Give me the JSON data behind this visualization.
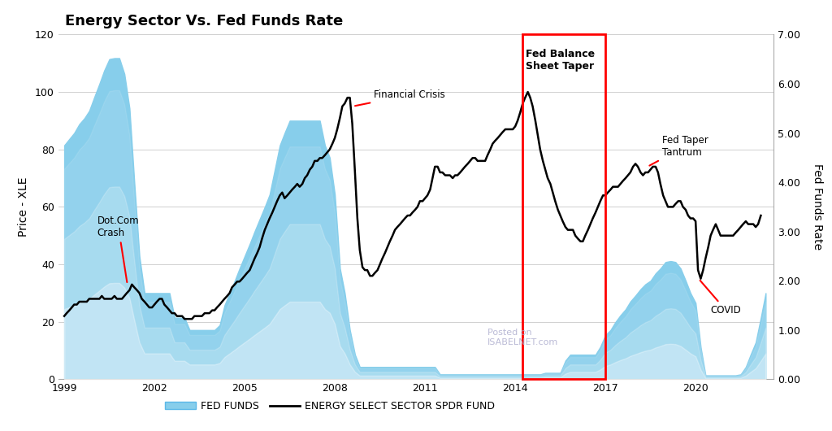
{
  "title": "Energy Sector Vs. Fed Funds Rate",
  "ylabel_left": "Price - XLE",
  "ylabel_right": "Fed Funds Rate",
  "ylim_left": [
    0,
    120
  ],
  "ylim_right": [
    0,
    7.0
  ],
  "background_color": "#ffffff",
  "grid_color": "#d0d0d0",
  "xle_color": "#000000",
  "fed_color_top": "#4db8e8",
  "fed_color_bottom": "#d0eef8",
  "annotation_color": "#ff0000",
  "rect_color": "#ff0000",
  "rect_x1": 2014.25,
  "rect_x2": 2017.0,
  "legend_items": [
    "FED FUNDS",
    "ENERGY SELECT SECTOR SPDR FUND"
  ],
  "xlim": [
    1998.8,
    2022.6
  ],
  "xticks": [
    1999,
    2002,
    2005,
    2008,
    2011,
    2014,
    2017,
    2020
  ],
  "yticks_left": [
    0,
    20,
    40,
    60,
    80,
    100,
    120
  ],
  "yticks_right": [
    0,
    1.0,
    2.0,
    3.0,
    4.0,
    5.0,
    6.0,
    7.0
  ],
  "fed_funds_data": {
    "years": [
      1999.0,
      1999.17,
      1999.33,
      1999.5,
      1999.67,
      1999.83,
      2000.0,
      2000.17,
      2000.33,
      2000.5,
      2000.67,
      2000.83,
      2001.0,
      2001.17,
      2001.33,
      2001.5,
      2001.67,
      2001.83,
      2002.0,
      2002.17,
      2002.33,
      2002.5,
      2002.67,
      2002.83,
      2003.0,
      2003.17,
      2003.33,
      2003.5,
      2003.67,
      2003.83,
      2004.0,
      2004.17,
      2004.33,
      2004.5,
      2004.67,
      2004.83,
      2005.0,
      2005.17,
      2005.33,
      2005.5,
      2005.67,
      2005.83,
      2006.0,
      2006.17,
      2006.33,
      2006.5,
      2006.67,
      2006.83,
      2007.0,
      2007.17,
      2007.33,
      2007.5,
      2007.67,
      2007.83,
      2008.0,
      2008.17,
      2008.33,
      2008.5,
      2008.67,
      2008.83,
      2009.0,
      2009.17,
      2009.33,
      2009.5,
      2009.67,
      2009.83,
      2010.0,
      2010.17,
      2010.33,
      2010.5,
      2010.67,
      2010.83,
      2011.0,
      2011.17,
      2011.33,
      2011.5,
      2011.67,
      2011.83,
      2012.0,
      2012.17,
      2012.33,
      2012.5,
      2012.67,
      2012.83,
      2013.0,
      2013.17,
      2013.33,
      2013.5,
      2013.67,
      2013.83,
      2014.0,
      2014.17,
      2014.33,
      2014.5,
      2014.67,
      2014.83,
      2015.0,
      2015.17,
      2015.33,
      2015.5,
      2015.67,
      2015.83,
      2016.0,
      2016.17,
      2016.33,
      2016.5,
      2016.67,
      2016.83,
      2017.0,
      2017.17,
      2017.33,
      2017.5,
      2017.67,
      2017.83,
      2018.0,
      2018.17,
      2018.33,
      2018.5,
      2018.67,
      2018.83,
      2019.0,
      2019.17,
      2019.33,
      2019.5,
      2019.67,
      2019.83,
      2020.0,
      2020.17,
      2020.33,
      2020.5,
      2020.67,
      2020.83,
      2021.0,
      2021.17,
      2021.33,
      2021.5,
      2021.67,
      2021.83,
      2022.0,
      2022.17,
      2022.33
    ],
    "rates": [
      4.75,
      4.88,
      5.0,
      5.18,
      5.3,
      5.45,
      5.73,
      6.0,
      6.27,
      6.5,
      6.52,
      6.52,
      6.2,
      5.5,
      4.0,
      2.5,
      1.75,
      1.75,
      1.75,
      1.75,
      1.75,
      1.75,
      1.25,
      1.25,
      1.25,
      1.0,
      1.0,
      1.0,
      1.0,
      1.0,
      1.0,
      1.1,
      1.5,
      1.75,
      2.0,
      2.25,
      2.5,
      2.75,
      3.0,
      3.25,
      3.5,
      3.75,
      4.25,
      4.75,
      5.0,
      5.25,
      5.25,
      5.25,
      5.25,
      5.25,
      5.25,
      5.25,
      4.75,
      4.5,
      3.75,
      2.25,
      1.75,
      1.0,
      0.5,
      0.25,
      0.25,
      0.25,
      0.25,
      0.25,
      0.25,
      0.25,
      0.25,
      0.25,
      0.25,
      0.25,
      0.25,
      0.25,
      0.25,
      0.25,
      0.25,
      0.1,
      0.1,
      0.1,
      0.1,
      0.1,
      0.1,
      0.1,
      0.1,
      0.1,
      0.1,
      0.1,
      0.1,
      0.1,
      0.1,
      0.1,
      0.1,
      0.1,
      0.1,
      0.1,
      0.1,
      0.1,
      0.13,
      0.13,
      0.13,
      0.13,
      0.38,
      0.5,
      0.5,
      0.5,
      0.5,
      0.5,
      0.5,
      0.66,
      0.9,
      1.0,
      1.16,
      1.3,
      1.42,
      1.58,
      1.7,
      1.83,
      1.93,
      2.0,
      2.15,
      2.25,
      2.38,
      2.4,
      2.38,
      2.25,
      2.0,
      1.75,
      1.55,
      0.65,
      0.08,
      0.08,
      0.08,
      0.08,
      0.08,
      0.08,
      0.08,
      0.1,
      0.25,
      0.5,
      0.75,
      1.25,
      1.75
    ]
  },
  "xle_data": {
    "years": [
      1999.0,
      1999.08,
      1999.17,
      1999.25,
      1999.33,
      1999.42,
      1999.5,
      1999.58,
      1999.67,
      1999.75,
      1999.83,
      1999.92,
      2000.0,
      2000.08,
      2000.17,
      2000.25,
      2000.33,
      2000.42,
      2000.5,
      2000.58,
      2000.67,
      2000.75,
      2000.83,
      2000.92,
      2001.0,
      2001.08,
      2001.17,
      2001.25,
      2001.33,
      2001.42,
      2001.5,
      2001.58,
      2001.67,
      2001.75,
      2001.83,
      2001.92,
      2002.0,
      2002.08,
      2002.17,
      2002.25,
      2002.33,
      2002.42,
      2002.5,
      2002.58,
      2002.67,
      2002.75,
      2002.83,
      2002.92,
      2003.0,
      2003.08,
      2003.17,
      2003.25,
      2003.33,
      2003.42,
      2003.5,
      2003.58,
      2003.67,
      2003.75,
      2003.83,
      2003.92,
      2004.0,
      2004.08,
      2004.17,
      2004.25,
      2004.33,
      2004.42,
      2004.5,
      2004.58,
      2004.67,
      2004.75,
      2004.83,
      2004.92,
      2005.0,
      2005.08,
      2005.17,
      2005.25,
      2005.33,
      2005.42,
      2005.5,
      2005.58,
      2005.67,
      2005.75,
      2005.83,
      2005.92,
      2006.0,
      2006.08,
      2006.17,
      2006.25,
      2006.33,
      2006.42,
      2006.5,
      2006.58,
      2006.67,
      2006.75,
      2006.83,
      2006.92,
      2007.0,
      2007.08,
      2007.17,
      2007.25,
      2007.33,
      2007.42,
      2007.5,
      2007.58,
      2007.67,
      2007.75,
      2007.83,
      2007.92,
      2008.0,
      2008.08,
      2008.17,
      2008.25,
      2008.33,
      2008.42,
      2008.5,
      2008.58,
      2008.67,
      2008.75,
      2008.83,
      2008.92,
      2009.0,
      2009.08,
      2009.17,
      2009.25,
      2009.33,
      2009.42,
      2009.5,
      2009.58,
      2009.67,
      2009.75,
      2009.83,
      2009.92,
      2010.0,
      2010.08,
      2010.17,
      2010.25,
      2010.33,
      2010.42,
      2010.5,
      2010.58,
      2010.67,
      2010.75,
      2010.83,
      2010.92,
      2011.0,
      2011.08,
      2011.17,
      2011.25,
      2011.33,
      2011.42,
      2011.5,
      2011.58,
      2011.67,
      2011.75,
      2011.83,
      2011.92,
      2012.0,
      2012.08,
      2012.17,
      2012.25,
      2012.33,
      2012.42,
      2012.5,
      2012.58,
      2012.67,
      2012.75,
      2012.83,
      2012.92,
      2013.0,
      2013.08,
      2013.17,
      2013.25,
      2013.33,
      2013.42,
      2013.5,
      2013.58,
      2013.67,
      2013.75,
      2013.83,
      2013.92,
      2014.0,
      2014.08,
      2014.17,
      2014.25,
      2014.33,
      2014.42,
      2014.5,
      2014.58,
      2014.67,
      2014.75,
      2014.83,
      2014.92,
      2015.0,
      2015.08,
      2015.17,
      2015.25,
      2015.33,
      2015.42,
      2015.5,
      2015.58,
      2015.67,
      2015.75,
      2015.83,
      2015.92,
      2016.0,
      2016.08,
      2016.17,
      2016.25,
      2016.33,
      2016.42,
      2016.5,
      2016.58,
      2016.67,
      2016.75,
      2016.83,
      2016.92,
      2017.0,
      2017.08,
      2017.17,
      2017.25,
      2017.33,
      2017.42,
      2017.5,
      2017.58,
      2017.67,
      2017.75,
      2017.83,
      2017.92,
      2018.0,
      2018.08,
      2018.17,
      2018.25,
      2018.33,
      2018.42,
      2018.5,
      2018.58,
      2018.67,
      2018.75,
      2018.83,
      2018.92,
      2019.0,
      2019.08,
      2019.17,
      2019.25,
      2019.33,
      2019.42,
      2019.5,
      2019.58,
      2019.67,
      2019.75,
      2019.83,
      2019.92,
      2020.0,
      2020.08,
      2020.17,
      2020.25,
      2020.33,
      2020.42,
      2020.5,
      2020.58,
      2020.67,
      2020.75,
      2020.83,
      2020.92,
      2021.0,
      2021.08,
      2021.17,
      2021.25,
      2021.33,
      2021.42,
      2021.5,
      2021.58,
      2021.67,
      2021.75,
      2021.83,
      2021.92,
      2022.0,
      2022.08,
      2022.17
    ],
    "prices": [
      22,
      23,
      24,
      25,
      26,
      26,
      27,
      27,
      27,
      27,
      28,
      28,
      28,
      28,
      28,
      29,
      28,
      28,
      28,
      28,
      29,
      28,
      28,
      28,
      29,
      30,
      31,
      33,
      32,
      31,
      30,
      28,
      27,
      26,
      25,
      25,
      26,
      27,
      28,
      28,
      26,
      25,
      24,
      23,
      23,
      22,
      22,
      22,
      21,
      21,
      21,
      21,
      22,
      22,
      22,
      22,
      23,
      23,
      23,
      24,
      24,
      25,
      26,
      27,
      28,
      29,
      30,
      32,
      33,
      34,
      34,
      35,
      36,
      37,
      38,
      40,
      42,
      44,
      46,
      49,
      52,
      54,
      56,
      58,
      60,
      62,
      64,
      65,
      63,
      64,
      65,
      66,
      67,
      68,
      67,
      68,
      70,
      71,
      73,
      74,
      76,
      76,
      77,
      77,
      78,
      79,
      80,
      82,
      84,
      87,
      91,
      95,
      96,
      98,
      98,
      89,
      72,
      56,
      45,
      39,
      38,
      38,
      36,
      36,
      37,
      38,
      40,
      42,
      44,
      46,
      48,
      50,
      52,
      53,
      54,
      55,
      56,
      57,
      57,
      58,
      59,
      60,
      62,
      62,
      63,
      64,
      66,
      70,
      74,
      74,
      72,
      72,
      71,
      71,
      71,
      70,
      71,
      71,
      72,
      73,
      74,
      75,
      76,
      77,
      77,
      76,
      76,
      76,
      76,
      78,
      80,
      82,
      83,
      84,
      85,
      86,
      87,
      87,
      87,
      87,
      88,
      90,
      93,
      96,
      98,
      100,
      98,
      95,
      90,
      85,
      80,
      76,
      73,
      70,
      68,
      65,
      62,
      59,
      57,
      55,
      53,
      52,
      52,
      52,
      50,
      49,
      48,
      48,
      50,
      52,
      54,
      56,
      58,
      60,
      62,
      64,
      64,
      65,
      66,
      67,
      67,
      67,
      68,
      69,
      70,
      71,
      72,
      74,
      75,
      74,
      72,
      71,
      72,
      72,
      73,
      74,
      74,
      72,
      68,
      64,
      62,
      60,
      60,
      60,
      61,
      62,
      62,
      60,
      59,
      57,
      56,
      56,
      55,
      38,
      35,
      38,
      42,
      46,
      50,
      52,
      54,
      52,
      50,
      50,
      50,
      50,
      50,
      50,
      51,
      52,
      53,
      54,
      55,
      54,
      54,
      54,
      53,
      54,
      57
    ]
  }
}
